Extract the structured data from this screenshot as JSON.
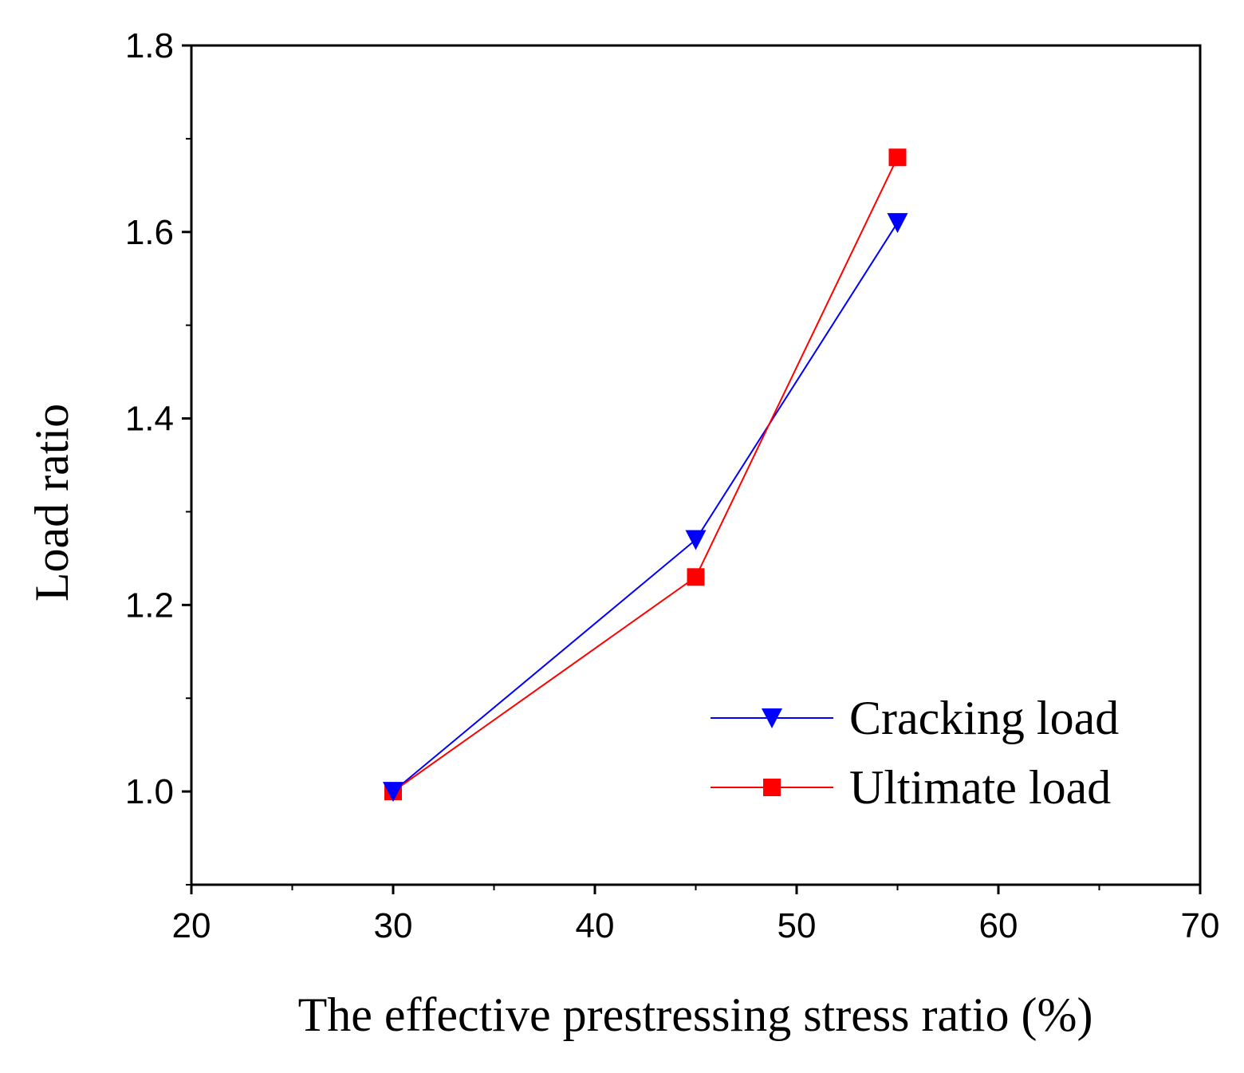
{
  "chart_data": {
    "type": "line",
    "title": "",
    "xlabel": "The effective prestressing stress ratio (%)",
    "ylabel": "Load ratio",
    "xlim": [
      20,
      70
    ],
    "ylim": [
      0.9,
      1.8
    ],
    "xticks": [
      20,
      30,
      40,
      50,
      60,
      70
    ],
    "xtick_labels": [
      "20",
      "30",
      "40",
      "50",
      "60",
      "70"
    ],
    "yticks": [
      1.0,
      1.2,
      1.4,
      1.6,
      1.8
    ],
    "ytick_labels": [
      "1.0",
      "1.2",
      "1.4",
      "1.6",
      "1.8"
    ],
    "x_minor_step": 5,
    "y_minor_step": 0.1,
    "grid": false,
    "legend_position": "bottom-right",
    "x": [
      30,
      45,
      55
    ],
    "series": [
      {
        "name": "Cracking load",
        "values": [
          1.0,
          1.27,
          1.61
        ],
        "color": "#0000ff",
        "marker": "triangle-down"
      },
      {
        "name": "Ultimate load",
        "values": [
          1.0,
          1.23,
          1.68
        ],
        "color": "#ff0000",
        "marker": "square"
      }
    ]
  }
}
